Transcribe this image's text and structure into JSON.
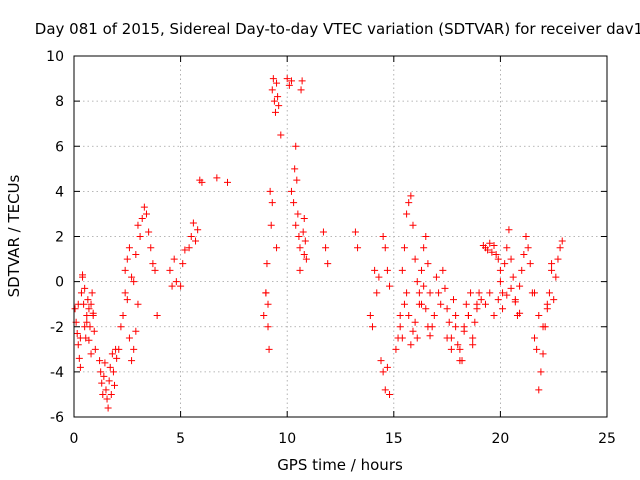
{
  "chart_data": {
    "type": "scatter",
    "title": "Day 081 of 2015, Sidereal Day-to-day VTEC variation (SDTVAR) for receiver dav1",
    "xlabel": "GPS time / hours",
    "ylabel": "SDTVAR / TECUs",
    "xlim": [
      0,
      25
    ],
    "ylim": [
      -6,
      10
    ],
    "xticks": [
      0,
      5,
      10,
      15,
      20,
      25
    ],
    "yticks": [
      -6,
      -4,
      -2,
      0,
      2,
      4,
      6,
      8,
      10
    ],
    "xtick_labels": [
      "0",
      "5",
      "10",
      "15",
      "20",
      "25"
    ],
    "ytick_labels": [
      "-6",
      "-4",
      "-2",
      "0",
      "2",
      "4",
      "6",
      "8",
      "10"
    ],
    "grid": true,
    "legend": "none",
    "marker": "+",
    "marker_color": "#ff0000",
    "series": [
      {
        "name": "SDTVAR",
        "x": [
          0.05,
          0.1,
          0.15,
          0.2,
          0.25,
          0.3,
          0.35,
          0.4,
          0.45,
          0.5,
          0.55,
          0.6,
          0.65,
          0.7,
          0.75,
          0.8,
          0.85,
          0.9,
          0.95,
          1.0,
          0.2,
          0.3,
          0.4,
          0.5,
          0.6,
          0.7,
          0.8,
          0.9,
          1.2,
          1.25,
          1.3,
          1.35,
          1.4,
          1.45,
          1.5,
          1.55,
          1.6,
          1.65,
          1.7,
          1.75,
          1.8,
          1.85,
          1.9,
          1.95,
          2.0,
          2.1,
          2.2,
          2.3,
          2.4,
          2.5,
          2.6,
          2.7,
          2.8,
          2.9,
          3.0,
          2.4,
          2.5,
          2.6,
          2.7,
          2.8,
          2.9,
          3.0,
          3.1,
          3.2,
          3.3,
          3.4,
          3.5,
          3.6,
          3.7,
          3.8,
          3.9,
          4.5,
          4.6,
          4.7,
          4.8,
          5.0,
          5.1,
          5.2,
          5.4,
          5.5,
          5.6,
          5.7,
          5.8,
          5.9,
          6.0,
          6.7,
          7.2,
          8.9,
          9.0,
          9.05,
          9.1,
          9.15,
          9.2,
          9.25,
          9.3,
          9.35,
          9.4,
          9.45,
          9.5,
          9.55,
          9.6,
          9.0,
          9.1,
          9.3,
          9.5,
          9.7,
          10.0,
          10.1,
          10.2,
          10.3,
          10.35,
          10.4,
          10.45,
          10.5,
          10.55,
          10.6,
          10.65,
          10.7,
          10.75,
          10.8,
          10.85,
          10.9,
          10.2,
          10.4,
          10.6,
          10.8,
          11.7,
          11.8,
          11.9,
          13.2,
          13.3,
          13.9,
          14.0,
          14.1,
          14.2,
          14.3,
          14.4,
          14.5,
          14.6,
          14.7,
          14.8,
          14.5,
          14.6,
          14.7,
          14.8,
          15.1,
          15.2,
          15.3,
          15.4,
          15.5,
          15.6,
          15.7,
          15.8,
          15.9,
          16.0,
          16.1,
          16.2,
          16.3,
          16.4,
          16.5,
          16.6,
          16.7,
          16.8,
          16.9,
          17.0,
          15.3,
          15.4,
          15.5,
          15.6,
          15.7,
          15.8,
          15.9,
          16.0,
          16.1,
          16.2,
          16.3,
          16.4,
          16.5,
          16.6,
          16.7,
          17.1,
          17.2,
          17.3,
          17.4,
          17.5,
          17.6,
          17.7,
          17.8,
          17.9,
          18.0,
          18.1,
          18.2,
          18.3,
          18.4,
          18.5,
          18.6,
          18.7,
          18.8,
          18.9,
          19.0,
          17.5,
          17.7,
          17.9,
          18.1,
          18.3,
          18.5,
          18.7,
          18.9,
          19.1,
          19.2,
          19.3,
          19.4,
          19.5,
          19.6,
          19.7,
          19.8,
          19.9,
          20.0,
          19.3,
          19.5,
          19.7,
          19.9,
          20.1,
          20.3,
          20.5,
          20.7,
          20.9,
          20.0,
          20.1,
          20.2,
          20.3,
          20.4,
          20.5,
          20.6,
          20.7,
          20.8,
          20.9,
          21.0,
          21.1,
          21.2,
          21.3,
          21.4,
          21.5,
          21.6,
          21.7,
          21.8,
          21.9,
          22.0,
          22.1,
          22.2,
          22.3,
          22.4,
          22.5,
          22.6,
          22.7,
          22.8,
          22.9,
          21.6,
          21.8,
          22.0,
          22.2,
          22.4
        ],
        "y": [
          -1.2,
          -1.8,
          -2.3,
          -2.8,
          -3.4,
          -3.8,
          -0.5,
          0.3,
          -1.0,
          -2.0,
          -2.5,
          -1.5,
          -0.8,
          -1.2,
          -2.0,
          -1.0,
          -0.5,
          -1.5,
          -2.2,
          -3.0,
          -1.0,
          -2.5,
          0.2,
          -0.3,
          -1.8,
          -2.6,
          -3.2,
          -1.4,
          -3.5,
          -4.0,
          -4.5,
          -5.0,
          -4.2,
          -3.6,
          -4.8,
          -5.2,
          -5.6,
          -4.4,
          -3.8,
          -5.0,
          -3.2,
          -4.0,
          -4.6,
          -3.0,
          -3.4,
          -3.0,
          -2.0,
          -1.5,
          -0.5,
          -0.8,
          -2.5,
          -3.5,
          -3.0,
          -2.2,
          -1.0,
          0.5,
          1.0,
          1.5,
          0.2,
          0.0,
          1.2,
          2.5,
          2.0,
          2.8,
          3.3,
          3.0,
          2.2,
          1.5,
          0.8,
          0.5,
          -1.5,
          0.5,
          -0.2,
          1.0,
          0.0,
          -0.2,
          0.8,
          1.4,
          1.5,
          2.0,
          2.6,
          1.8,
          2.3,
          4.5,
          4.4,
          4.6,
          4.4,
          -1.5,
          -0.5,
          0.8,
          -2.0,
          -3.0,
          4.0,
          2.5,
          8.5,
          9.0,
          8.0,
          7.5,
          8.8,
          8.2,
          7.8,
          -0.5,
          -1.0,
          3.5,
          1.5,
          6.5,
          9.0,
          8.7,
          8.9,
          3.5,
          5.0,
          2.5,
          4.5,
          3.0,
          2.0,
          1.5,
          8.5,
          8.9,
          2.2,
          2.8,
          1.8,
          1.0,
          4.0,
          6.0,
          0.5,
          1.2,
          2.2,
          1.5,
          0.8,
          2.2,
          1.5,
          -1.5,
          -2.0,
          0.5,
          -0.5,
          0.2,
          -3.5,
          -4.0,
          -4.8,
          -3.8,
          -5.0,
          2.0,
          1.5,
          0.5,
          -0.2,
          -3.0,
          -2.5,
          -1.5,
          0.5,
          1.5,
          3.0,
          3.5,
          3.8,
          2.5,
          1.0,
          0.0,
          -0.5,
          -1.0,
          1.5,
          2.0,
          0.8,
          -0.5,
          -2.0,
          -1.5,
          0.2,
          -2.0,
          -2.5,
          -1.0,
          -0.5,
          -1.5,
          -2.8,
          -2.2,
          -1.8,
          -2.5,
          -1.0,
          0.5,
          -0.2,
          -1.2,
          -2.0,
          -2.4,
          -0.5,
          -1.0,
          0.5,
          -0.3,
          -1.2,
          -1.8,
          -2.5,
          -0.8,
          -1.5,
          -2.8,
          -3.0,
          -3.5,
          -2.0,
          -1.0,
          -1.5,
          -0.5,
          -2.5,
          -1.8,
          -1.2,
          -0.5,
          -2.5,
          -3.0,
          -2.0,
          -3.5,
          -2.2,
          -1.5,
          -2.8,
          -1.0,
          -0.8,
          1.6,
          1.5,
          1.4,
          1.7,
          1.3,
          1.6,
          1.2,
          1.0,
          0.5,
          -1.0,
          -0.5,
          -1.5,
          -0.8,
          -1.2,
          -0.6,
          -0.3,
          -0.9,
          -1.4,
          0.0,
          -0.5,
          0.8,
          1.5,
          2.3,
          1.0,
          0.2,
          -0.8,
          -1.5,
          -0.2,
          0.5,
          1.2,
          2.0,
          1.5,
          0.8,
          -0.5,
          -2.5,
          -3.0,
          -4.8,
          -4.0,
          -3.2,
          -2.0,
          -1.2,
          -0.5,
          0.8,
          -0.8,
          0.2,
          1.0,
          1.5,
          1.8,
          -0.5,
          -1.5,
          -2.0,
          -1.0,
          0.5
        ]
      }
    ]
  }
}
